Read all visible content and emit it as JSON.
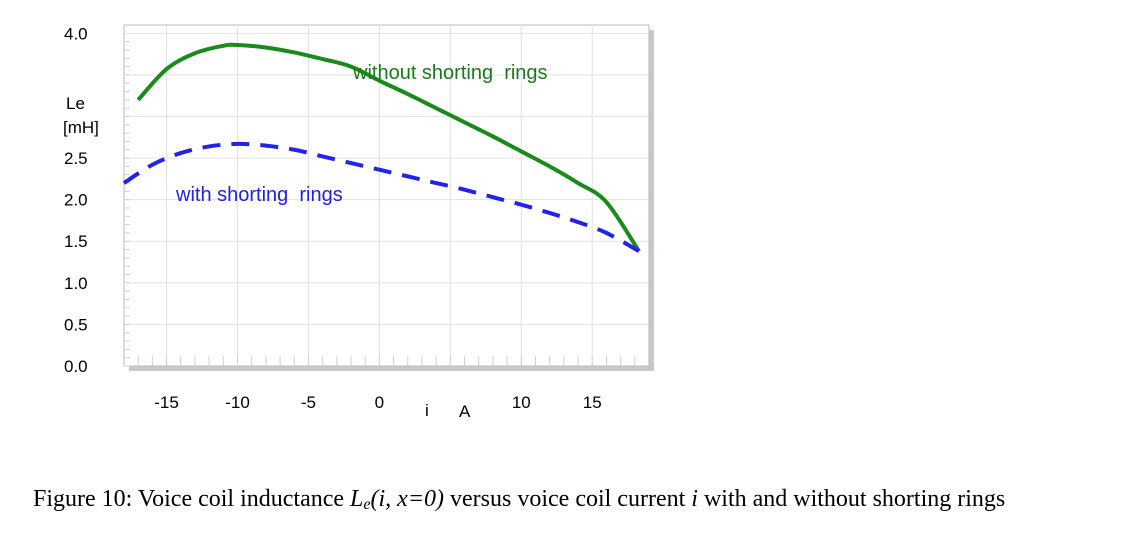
{
  "chart_data": {
    "type": "line",
    "xlabel_parts": [
      "i",
      "A"
    ],
    "ylabel_lines": [
      "Le",
      "[mH]"
    ],
    "xlim": [
      -18,
      19
    ],
    "ylim": [
      0,
      4.1
    ],
    "x_ticks": [
      "-15",
      "-10",
      "-5",
      "0",
      "10",
      "15"
    ],
    "x_tick_values": [
      -15,
      -10,
      -5,
      0,
      10,
      15
    ],
    "y_ticks": [
      "4.0",
      "2.5",
      "2.0",
      "1.5",
      "1.0",
      "0.5",
      "0.0"
    ],
    "y_tick_values": [
      4.0,
      2.5,
      2.0,
      1.5,
      1.0,
      0.5,
      0.0
    ],
    "grid": true,
    "series": [
      {
        "name": "without shorting  rings",
        "color": "#1a8a1a",
        "style": "solid",
        "x": [
          -17,
          -15,
          -13,
          -11,
          -10,
          -8,
          -6,
          -4,
          -2,
          0,
          2,
          4,
          6,
          8,
          10,
          12,
          14,
          16,
          18.3
        ],
        "y": [
          3.2,
          3.57,
          3.76,
          3.85,
          3.86,
          3.83,
          3.77,
          3.69,
          3.6,
          3.43,
          3.27,
          3.1,
          2.93,
          2.76,
          2.58,
          2.4,
          2.2,
          1.97,
          1.38
        ]
      },
      {
        "name": "with shorting  rings",
        "color": "#2222ee",
        "style": "dashed",
        "x": [
          -18,
          -16,
          -14,
          -12,
          -10,
          -8,
          -6,
          -4,
          -2,
          0,
          2,
          4,
          6,
          8,
          10,
          12,
          14,
          16,
          18.3
        ],
        "y": [
          2.2,
          2.42,
          2.56,
          2.64,
          2.67,
          2.65,
          2.6,
          2.52,
          2.44,
          2.36,
          2.28,
          2.2,
          2.12,
          2.03,
          1.94,
          1.84,
          1.73,
          1.6,
          1.38
        ]
      }
    ]
  },
  "caption": {
    "prefix": "Figure 10: Voice coil inductance ",
    "math_L": "L",
    "math_sub": "e",
    "math_args": "(i, x=0)",
    "middle": " versus voice coil current ",
    "math_i": "i",
    "suffix": " with and without shorting rings"
  }
}
